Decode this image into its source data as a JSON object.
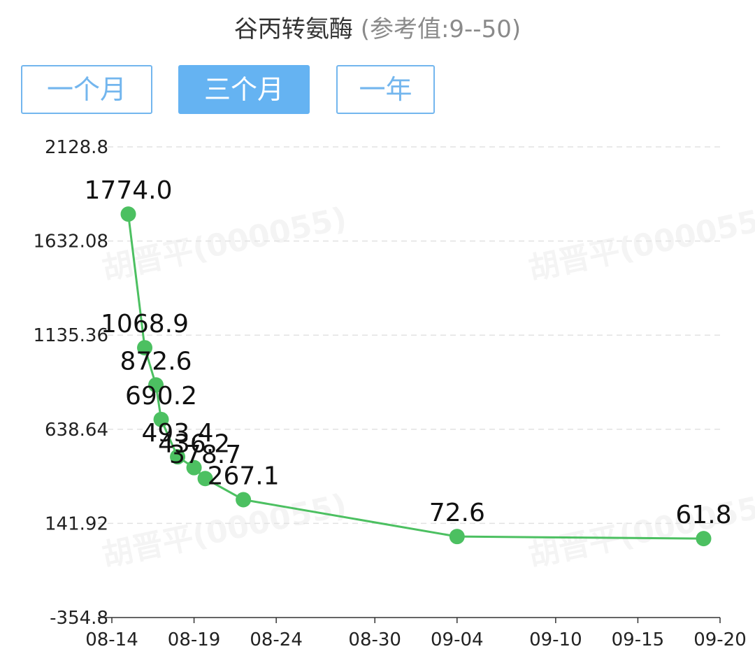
{
  "header": {
    "title": "谷丙转氨酶",
    "reference": "(参考值:9--50)"
  },
  "range_tabs": [
    {
      "label": "一个月",
      "active": false
    },
    {
      "label": "三个月",
      "active": true
    },
    {
      "label": "一年",
      "active": false
    }
  ],
  "watermark": "胡晋平(000055)",
  "colors": {
    "line": "#4cc061",
    "accent": "#65b3f2",
    "accent_border": "#73b6ee"
  },
  "chart_data": {
    "type": "line",
    "title": "谷丙转氨酶",
    "xlabel": "",
    "ylabel": "",
    "ylim": [
      -354.8,
      2128.8
    ],
    "grid": true,
    "y_ticks": [
      "2128.8",
      "1632.08",
      "1135.36",
      "638.64",
      "141.92",
      "-354.8"
    ],
    "x_ticks": [
      "08-14",
      "08-19",
      "08-24",
      "08-30",
      "09-04",
      "09-10",
      "09-15",
      "09-20"
    ],
    "series": [
      {
        "points": [
          {
            "date": "08-15",
            "value": 1774.0,
            "label": "1774.0"
          },
          {
            "date": "08-16",
            "value": 1068.9,
            "label": "1068.9"
          },
          {
            "date": "08-16",
            "value": 872.6,
            "label": "872.6"
          },
          {
            "date": "08-17",
            "value": 690.2,
            "label": "690.2"
          },
          {
            "date": "08-18",
            "value": 493.4,
            "label": "493.4"
          },
          {
            "date": "08-19",
            "value": 436.2,
            "label": "436.2"
          },
          {
            "date": "08-19",
            "value": 378.7,
            "label": "378.7"
          },
          {
            "date": "08-22",
            "value": 267.1,
            "label": "267.1"
          },
          {
            "date": "09-04",
            "value": 72.6,
            "label": "72.6"
          },
          {
            "date": "09-19",
            "value": 61.8,
            "label": "61.8"
          }
        ]
      }
    ]
  }
}
